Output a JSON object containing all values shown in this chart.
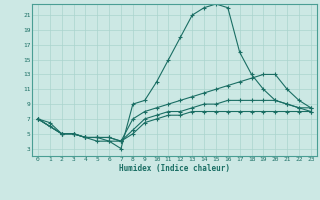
{
  "xlabel": "Humidex (Indice chaleur)",
  "bg_color": "#cce8e4",
  "line_color": "#1a6e64",
  "grid_color": "#aad4ce",
  "spine_color": "#4a9e94",
  "xlim": [
    -0.5,
    23.5
  ],
  "ylim": [
    2.0,
    22.5
  ],
  "xticks": [
    0,
    1,
    2,
    3,
    4,
    5,
    6,
    7,
    8,
    9,
    10,
    11,
    12,
    13,
    14,
    15,
    16,
    17,
    18,
    19,
    20,
    21,
    22,
    23
  ],
  "yticks": [
    3,
    5,
    7,
    9,
    11,
    13,
    15,
    17,
    19,
    21
  ],
  "line1_x": [
    0,
    1,
    2,
    3,
    4,
    5,
    6,
    7,
    8,
    9,
    10,
    11,
    12,
    13,
    14,
    15,
    16,
    17,
    18,
    19,
    20,
    21,
    22,
    23
  ],
  "line1_y": [
    7,
    6,
    5,
    5,
    4.5,
    4,
    4,
    3,
    9,
    9.5,
    12,
    15,
    18,
    21,
    22,
    22.5,
    22,
    16,
    13,
    11,
    9.5,
    9,
    8.5,
    8
  ],
  "line2_x": [
    0,
    1,
    2,
    3,
    4,
    5,
    6,
    7,
    8,
    9,
    10,
    11,
    12,
    13,
    14,
    15,
    16,
    17,
    18,
    19,
    20,
    21,
    22,
    23
  ],
  "line2_y": [
    7,
    6.5,
    5,
    5,
    4.5,
    4.5,
    4.5,
    4,
    7,
    8,
    8.5,
    9,
    9.5,
    10,
    10.5,
    11,
    11.5,
    12,
    12.5,
    13,
    13,
    11,
    9.5,
    8.5
  ],
  "line3_x": [
    0,
    2,
    3,
    4,
    5,
    6,
    7,
    8,
    9,
    10,
    11,
    12,
    13,
    14,
    15,
    16,
    17,
    18,
    19,
    20,
    21,
    22,
    23
  ],
  "line3_y": [
    7,
    5,
    5,
    4.5,
    4.5,
    4.5,
    4,
    5.5,
    7,
    7.5,
    8,
    8,
    8.5,
    9,
    9,
    9.5,
    9.5,
    9.5,
    9.5,
    9.5,
    9,
    8.5,
    8.5
  ],
  "line4_x": [
    0,
    2,
    3,
    4,
    5,
    6,
    7,
    8,
    9,
    10,
    11,
    12,
    13,
    14,
    15,
    16,
    17,
    18,
    19,
    20,
    21,
    22,
    23
  ],
  "line4_y": [
    7,
    5,
    5,
    4.5,
    4.5,
    4,
    4,
    5,
    6.5,
    7,
    7.5,
    7.5,
    8,
    8,
    8,
    8,
    8,
    8,
    8,
    8,
    8,
    8,
    8
  ]
}
